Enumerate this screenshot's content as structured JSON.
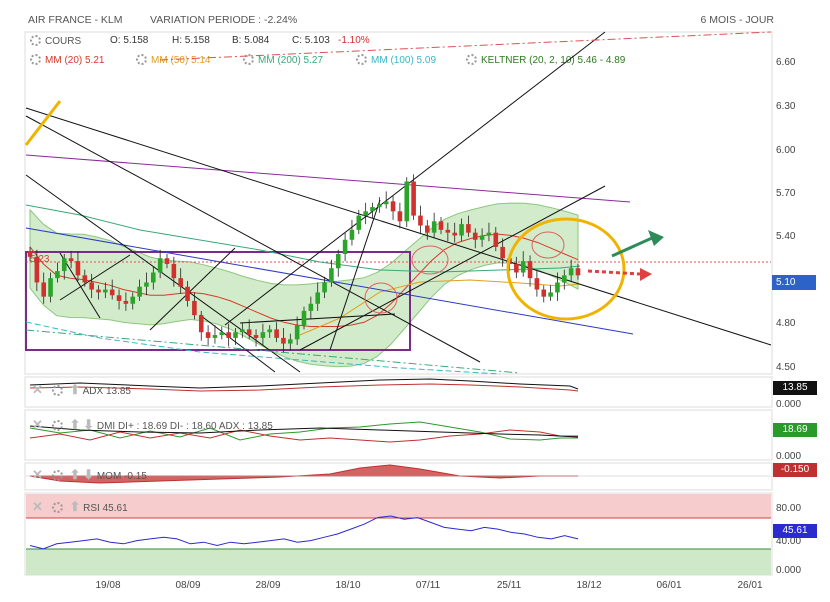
{
  "header": {
    "title": "AIR FRANCE - KLM",
    "variation": "VARIATION PERIODE : -2.24%",
    "period": "6 MOIS - JOUR"
  },
  "legend": {
    "cours_label": "COURS",
    "o": "O: 5.158",
    "h": "H: 5.158",
    "b": "B: 5.084",
    "c": "C: 5.103",
    "chg": "-1.10%",
    "mm20": "MM (20)  5.21",
    "mm50": "MM (50)  5.14",
    "mm200": "MM (200)  5.27",
    "mm100": "MM (100)  5.09",
    "keltner": "KELTNER (20, 2, 10)  5.46 - 4.89"
  },
  "colors": {
    "candle_up": "#2aa52a",
    "candle_down": "#d0312d",
    "mm20": "#d63a2a",
    "mm50": "#e0a020",
    "mm200": "#3aa87a",
    "mm100": "#39b8c8",
    "keltner": "#3a8a2a",
    "keltner_fill": "#bfe3b3",
    "annot_yellow": "#f0b400",
    "annot_green": "#2e8b57",
    "price_badge": "#2d63c8",
    "rsi_line": "#2a2ad0"
  },
  "price_axis": {
    "ticks": [
      "6.60",
      "6.30",
      "6.00",
      "5.70",
      "5.40",
      "5.10",
      "4.80",
      "4.50"
    ],
    "current_label": "5.10",
    "box_label": "5.23"
  },
  "panels": {
    "adx": {
      "label": "ADX  13.85",
      "badge": "13.85",
      "zero": "0.000"
    },
    "dmi": {
      "label": "DMI  DI+ : 18.69  DI- : 18.60  ADX : 13.85",
      "badge": "18.69",
      "zero": "0.000"
    },
    "mom": {
      "label": "MOM  -0.15",
      "badge": "-0.150"
    },
    "rsi": {
      "label": "RSI  45.61",
      "badge": "45.61",
      "ticks": [
        "80.00",
        "40.00",
        "0.000"
      ]
    }
  },
  "x_axis": [
    "19/08",
    "08/09",
    "28/09",
    "18/10",
    "07/11",
    "25/11",
    "18/12",
    "06/01",
    "26/01"
  ],
  "chart_data": {
    "type": "candlestick",
    "title": "AIR FRANCE - KLM",
    "ylim": [
      4.5,
      6.8
    ],
    "last_close": 5.103,
    "closes": [
      5.23,
      5.05,
      4.95,
      5.08,
      5.13,
      5.22,
      5.2,
      5.1,
      5.05,
      5.0,
      4.98,
      5.0,
      4.96,
      4.92,
      4.9,
      4.95,
      5.02,
      5.05,
      5.12,
      5.22,
      5.18,
      5.08,
      5.02,
      4.92,
      4.82,
      4.7,
      4.66,
      4.68,
      4.7,
      4.66,
      4.7,
      4.72,
      4.68,
      4.66,
      4.7,
      4.72,
      4.66,
      4.62,
      4.65,
      4.75,
      4.85,
      4.9,
      4.98,
      5.05,
      5.15,
      5.25,
      5.35,
      5.42,
      5.52,
      5.55,
      5.58,
      5.6,
      5.62,
      5.55,
      5.48,
      5.76,
      5.52,
      5.45,
      5.4,
      5.48,
      5.42,
      5.4,
      5.38,
      5.46,
      5.4,
      5.35,
      5.38,
      5.4,
      5.3,
      5.22,
      5.18,
      5.12,
      5.2,
      5.08,
      5.0,
      4.95,
      4.98,
      5.05,
      5.1,
      5.15,
      5.1
    ],
    "mm20": [
      5.3,
      5.18,
      5.1,
      5.08,
      5.07,
      5.05,
      5.03,
      5.0,
      4.98,
      4.96,
      4.96,
      4.97,
      4.98,
      4.97,
      4.95,
      4.92,
      4.88,
      4.84,
      4.8,
      4.77,
      4.75,
      4.74,
      4.74,
      4.74,
      4.75,
      4.77,
      4.82,
      4.9,
      5.0,
      5.1,
      5.2,
      5.28,
      5.33,
      5.36,
      5.38,
      5.39,
      5.38,
      5.36,
      5.33,
      5.29,
      5.25,
      5.21
    ],
    "rsi": [
      36,
      32,
      38,
      40,
      42,
      44,
      40,
      38,
      42,
      44,
      46,
      44,
      38,
      40,
      36,
      40,
      38,
      40,
      42,
      44,
      40,
      42,
      46,
      50,
      56,
      62,
      70,
      72,
      68,
      70,
      64,
      58,
      56,
      54,
      58,
      56,
      52,
      50,
      46,
      44,
      48,
      44
    ],
    "rsi_levels": [
      70,
      30
    ]
  }
}
